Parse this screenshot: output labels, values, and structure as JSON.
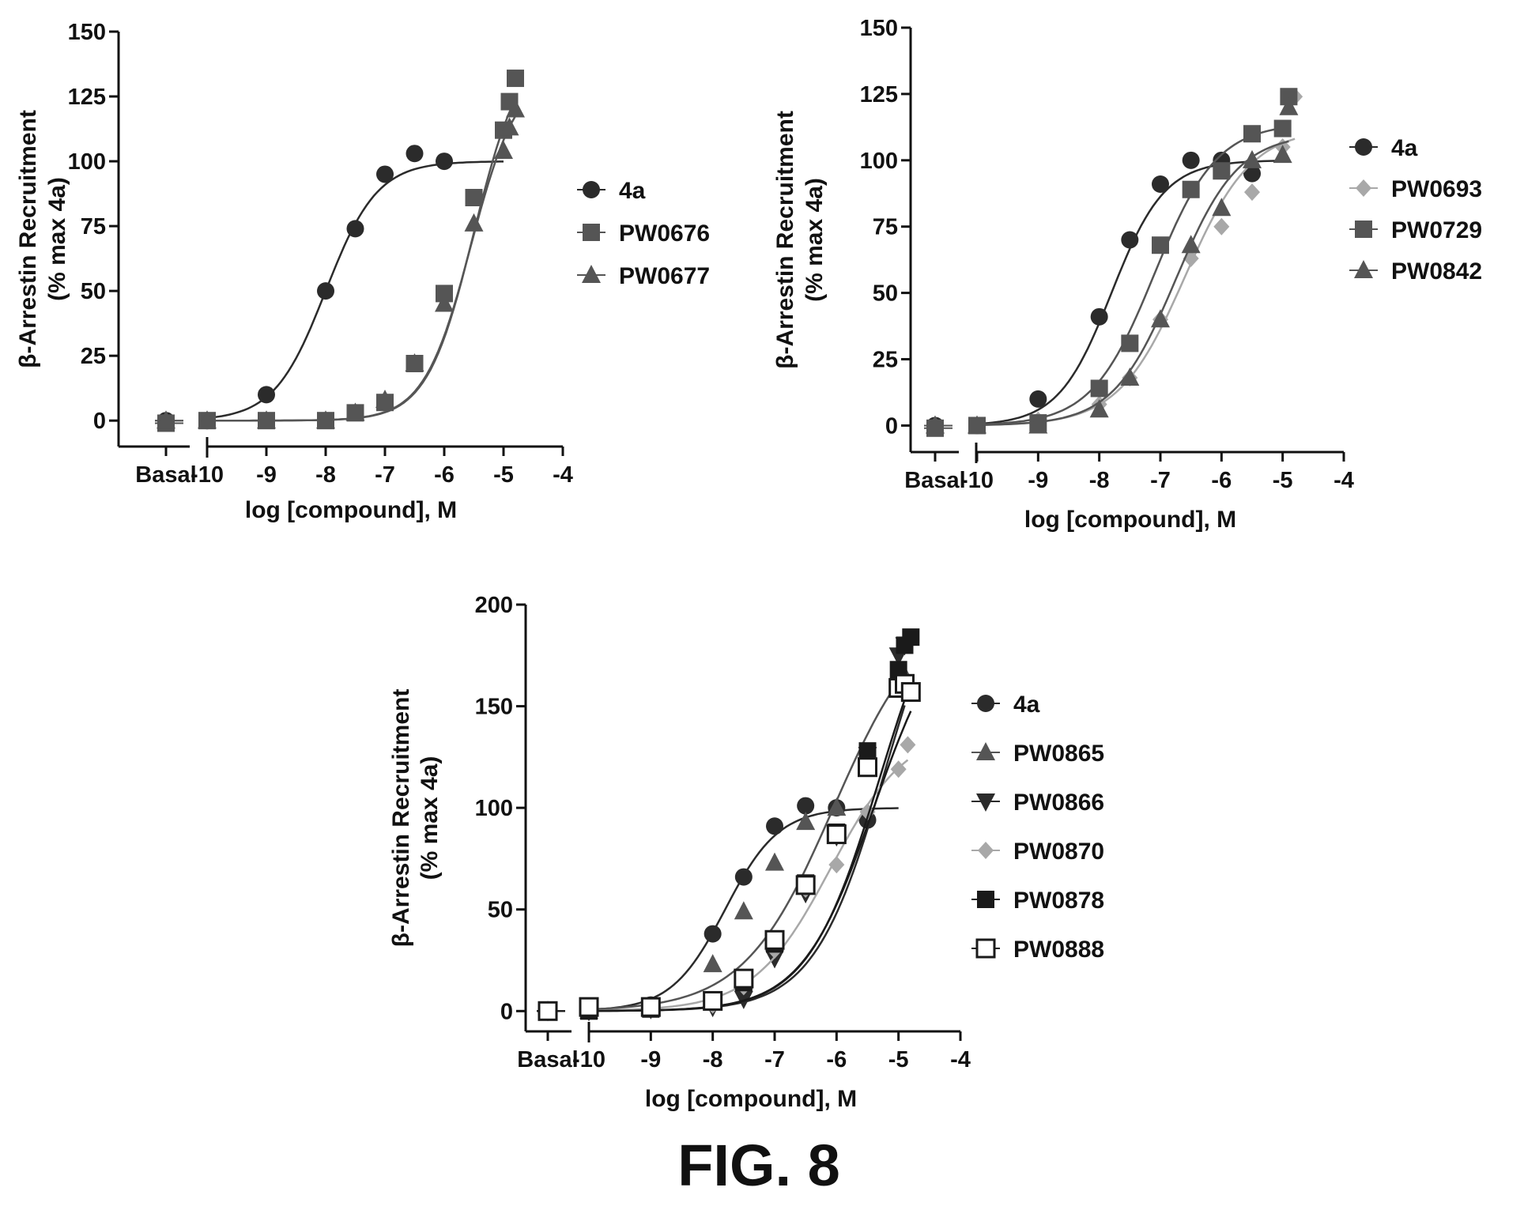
{
  "figure_caption": "FIG. 8",
  "chart_data": [
    {
      "type": "scatter",
      "ylabel_line1": "β-Arrestin Recruitment",
      "ylabel_line2": "(% max 4a)",
      "xlabel": "log [compound], M",
      "xlim": [
        -10.5,
        -4
      ],
      "ylim": [
        -10,
        150
      ],
      "yticks": [
        0,
        25,
        50,
        75,
        100,
        125,
        150
      ],
      "xticks": [
        -10,
        -9,
        -8,
        -7,
        -6,
        -5,
        -4
      ],
      "basal_label": "Basal",
      "legend_position": "right",
      "series": [
        {
          "name": "4a",
          "marker": "circle",
          "color": "#2b2b2b",
          "basal": 0,
          "x": [
            -10,
            -9,
            -8,
            -7.5,
            -7,
            -6.5,
            -6
          ],
          "y": [
            0,
            10,
            50,
            74,
            95,
            103,
            100
          ],
          "curve": {
            "bottom": 0,
            "top": 100,
            "logec50": -8.0,
            "hill": 1.0,
            "xmin": -10,
            "xmax": -5
          }
        },
        {
          "name": "PW0676",
          "marker": "square",
          "color": "#555555",
          "basal": -1,
          "x": [
            -10,
            -9,
            -8,
            -7.5,
            -7,
            -6.5,
            -6,
            -5.5,
            -5,
            -4.9,
            -4.8
          ],
          "y": [
            0,
            0,
            0,
            3,
            7,
            22,
            49,
            86,
            112,
            123,
            132
          ],
          "curve": {
            "bottom": 0,
            "top": 145,
            "logec50": -5.5,
            "hill": 1.1,
            "xmin": -10,
            "xmax": -4.8
          }
        },
        {
          "name": "PW0677",
          "marker": "triangle",
          "color": "#555555",
          "basal": 0,
          "x": [
            -10,
            -9,
            -8,
            -7.5,
            -7,
            -6.5,
            -6,
            -5.5,
            -5,
            -4.9,
            -4.8
          ],
          "y": [
            0,
            0,
            0,
            3,
            8,
            22,
            45,
            76,
            104,
            113,
            120
          ],
          "curve": {
            "bottom": 0,
            "top": 135,
            "logec50": -5.55,
            "hill": 1.1,
            "xmin": -10,
            "xmax": -4.8
          }
        }
      ]
    },
    {
      "type": "scatter",
      "ylabel_line1": "β-Arrestin Recruitment",
      "ylabel_line2": "(% max 4a)",
      "xlabel": "log [compound], M",
      "xlim": [
        -10.5,
        -4
      ],
      "ylim": [
        -10,
        150
      ],
      "yticks": [
        0,
        25,
        50,
        75,
        100,
        125,
        150
      ],
      "xticks": [
        -10,
        -9,
        -8,
        -7,
        -6,
        -5,
        -4
      ],
      "basal_label": "Basal",
      "legend_position": "right",
      "series": [
        {
          "name": "4a",
          "marker": "circle",
          "color": "#2b2b2b",
          "basal": 0,
          "x": [
            -10,
            -9,
            -8,
            -7.5,
            -7,
            -6.5,
            -6,
            -5.5
          ],
          "y": [
            0,
            10,
            41,
            70,
            91,
            100,
            100,
            95
          ],
          "curve": {
            "bottom": 0,
            "top": 100,
            "logec50": -7.8,
            "hill": 1.0,
            "xmin": -10,
            "xmax": -5
          }
        },
        {
          "name": "PW0693",
          "marker": "diamond",
          "color": "#a8a8a8",
          "basal": 0,
          "x": [
            -10,
            -9,
            -8,
            -7.5,
            -7,
            -6.5,
            -6,
            -5.5,
            -5,
            -4.8
          ],
          "y": [
            0,
            2,
            8,
            18,
            40,
            63,
            75,
            88,
            105,
            124
          ],
          "curve": {
            "bottom": 0,
            "top": 112,
            "logec50": -6.6,
            "hill": 0.8,
            "xmin": -10,
            "xmax": -4.8
          }
        },
        {
          "name": "PW0729",
          "marker": "square",
          "color": "#555555",
          "basal": -1,
          "x": [
            -10,
            -9,
            -8,
            -7.5,
            -7,
            -6.5,
            -6,
            -5.5,
            -5,
            -4.9
          ],
          "y": [
            0,
            1,
            14,
            31,
            68,
            89,
            96,
            110,
            112,
            124
          ],
          "curve": {
            "bottom": 0,
            "top": 114,
            "logec50": -7.1,
            "hill": 0.85,
            "xmin": -10,
            "xmax": -4.9
          }
        },
        {
          "name": "PW0842",
          "marker": "triangle",
          "color": "#555555",
          "basal": 0,
          "x": [
            -10,
            -9,
            -8,
            -7.5,
            -7,
            -6.5,
            -6,
            -5.5,
            -5,
            -4.9
          ],
          "y": [
            0,
            0,
            6,
            18,
            40,
            68,
            82,
            100,
            102,
            120
          ],
          "curve": {
            "bottom": 0,
            "top": 110,
            "logec50": -6.75,
            "hill": 0.85,
            "xmin": -10,
            "xmax": -4.9
          }
        }
      ]
    },
    {
      "type": "scatter",
      "ylabel_line1": "β-Arrestin Recruitment",
      "ylabel_line2": "(% max 4a)",
      "xlabel": "log [compound], M",
      "xlim": [
        -10.5,
        -4
      ],
      "ylim": [
        -10,
        200
      ],
      "yticks": [
        0,
        50,
        100,
        150,
        200
      ],
      "xticks": [
        -10,
        -9,
        -8,
        -7,
        -6,
        -5,
        -4
      ],
      "basal_label": "Basal",
      "legend_position": "right",
      "series": [
        {
          "name": "4a",
          "marker": "circle",
          "color": "#2b2b2b",
          "basal": 0,
          "x": [
            -10,
            -9,
            -8,
            -7.5,
            -7,
            -6.5,
            -6,
            -5.5
          ],
          "y": [
            0,
            3,
            38,
            66,
            91,
            101,
            100,
            94
          ],
          "curve": {
            "bottom": 0,
            "top": 100,
            "logec50": -7.8,
            "hill": 1.0,
            "xmin": -10,
            "xmax": -5
          }
        },
        {
          "name": "PW0865",
          "marker": "triangle",
          "color": "#555555",
          "basal": 0,
          "x": [
            -10,
            -9,
            -8,
            -7.5,
            -7,
            -6.5,
            -6,
            -5.5,
            -5,
            -4.9
          ],
          "y": [
            0,
            2,
            23,
            49,
            73,
            93,
            100,
            122,
            160,
            165
          ],
          "curve": {
            "bottom": 0,
            "top": 200,
            "logec50": -6.05,
            "hill": 0.6,
            "xmin": -10,
            "xmax": -4.9
          }
        },
        {
          "name": "PW0866",
          "marker": "triangle-down",
          "color": "#2b2b2b",
          "basal": 0,
          "x": [
            -10,
            -9,
            -8,
            -7.5,
            -7,
            -6.5,
            -6,
            -5.5,
            -5,
            -4.9
          ],
          "y": [
            0,
            1,
            2,
            6,
            26,
            58,
            86,
            126,
            175,
            180
          ],
          "curve": {
            "bottom": 0,
            "top": 240,
            "logec50": -5.2,
            "hill": 0.75,
            "xmin": -10,
            "xmax": -4.9
          }
        },
        {
          "name": "PW0870",
          "marker": "diamond",
          "color": "#a8a8a8",
          "basal": 0,
          "x": [
            -10,
            -9,
            -8,
            -7.5,
            -7,
            -6.5,
            -6,
            -5.5,
            -5,
            -4.85
          ],
          "y": [
            0,
            1,
            3,
            12,
            30,
            60,
            72,
            98,
            119,
            131
          ],
          "curve": {
            "bottom": 0,
            "top": 140,
            "logec50": -6.1,
            "hill": 0.7,
            "xmin": -10,
            "xmax": -4.85
          }
        },
        {
          "name": "PW0878",
          "marker": "square",
          "color": "#1a1a1a",
          "basal": 0,
          "x": [
            -10,
            -9,
            -8,
            -7.5,
            -7,
            -6.5,
            -6,
            -5.5,
            -5,
            -4.9,
            -4.8
          ],
          "y": [
            0,
            1,
            5,
            14,
            33,
            63,
            88,
            128,
            168,
            180,
            184
          ],
          "curve": {
            "bottom": 0,
            "top": 230,
            "logec50": -5.3,
            "hill": 0.75,
            "xmin": -10,
            "xmax": -4.8
          }
        },
        {
          "name": "PW0888",
          "marker": "square-open",
          "color": "#1a1a1a",
          "basal": 0,
          "x": [
            -10,
            -9,
            -8,
            -7.5,
            -7,
            -6.5,
            -6,
            -5.5,
            -5,
            -4.9,
            -4.8
          ],
          "y": [
            2,
            2,
            5,
            16,
            35,
            62,
            87,
            120,
            159,
            161,
            157
          ],
          "curve": {
            "bottom": 0,
            "top": 200,
            "logec50": -5.4,
            "hill": 0.75,
            "xmin": -10,
            "xmax": -4.8
          }
        }
      ]
    }
  ]
}
